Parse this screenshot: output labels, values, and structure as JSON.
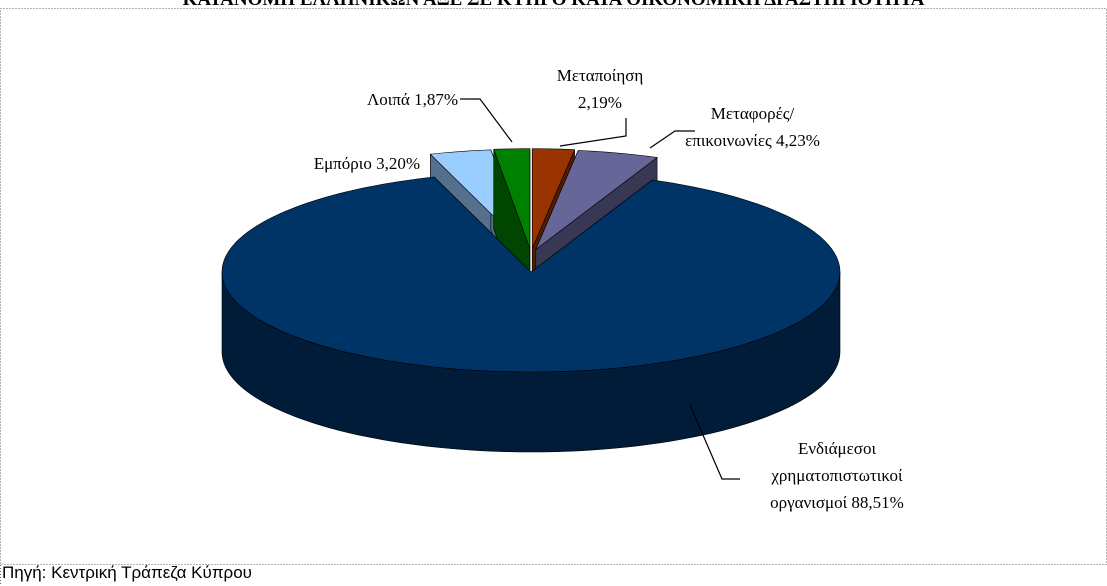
{
  "chart_data": {
    "type": "pie",
    "title": "ΚΑΤΑΝΟΜΗ ΕΛΛΗΝΙΚΩΝ ΑΞΕ ΣΕ ΚΥΠΡΟ ΚΑΤΑ ΟΙΚΟΝΟΜΙΚΗ ΔΡΑΣΤΗΡΙΟΤΗΤΑ",
    "categories": [
      "Μεταποίηση",
      "Μεταφορές/ επικοινωνίες",
      "Ενδιάμεσοι χρηματοπιστωτικοί οργανισμοί",
      "Εμπόριο",
      "Λοιπά"
    ],
    "values": [
      2.19,
      4.23,
      88.51,
      3.2,
      1.87
    ],
    "value_labels": [
      "2,19%",
      "4,23%",
      "88,51%",
      "3,20%",
      "1,87%"
    ],
    "colors": [
      "#993300",
      "#666699",
      "#003366",
      "#99ccff",
      "#008000"
    ],
    "source": "Πηγή: Κεντρική Τράπεζα Κύπρου"
  }
}
